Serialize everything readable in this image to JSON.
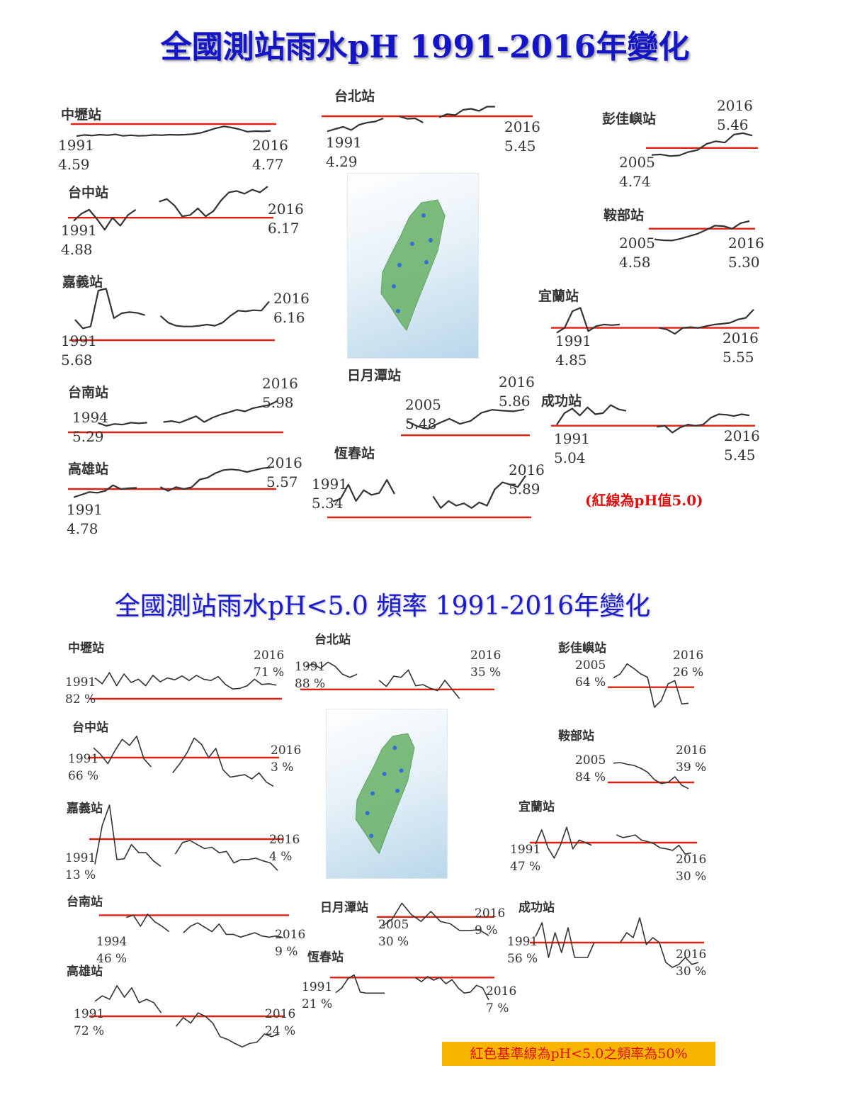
{
  "title_top": "全國測站雨水pH 1991-2016年變化",
  "title_bottom": "全國測站雨水pH<5.0 頻率 1991-2016年變化",
  "note_top": "(紅線為pH值5.0)",
  "note_bottom": "紅色基準線為pH<5.0之頻率為50%",
  "colors": {
    "title": "#1515c8",
    "reference_line": "#e02010",
    "series": "#333333",
    "note_bg": "#f7b500"
  },
  "chart_data": [
    {
      "type": "line",
      "title": "全國測站雨水pH 1991-2016年變化",
      "reference_line": 5.0,
      "stations": [
        {
          "name": "中壢站",
          "start_year": "1991",
          "start_value": "4.59",
          "end_year": "2016",
          "end_value": "4.77",
          "values": [
            4.59,
            4.63,
            4.61,
            4.64,
            4.62,
            4.65,
            4.6,
            4.62,
            4.6,
            4.61,
            4.63,
            4.62,
            4.64,
            4.63,
            4.64,
            4.66,
            4.7,
            4.78,
            4.86,
            4.92,
            4.88,
            4.82,
            4.74,
            4.76,
            4.75,
            4.77
          ]
        },
        {
          "name": "台中站",
          "start_year": "1991",
          "start_value": "4.88",
          "end_year": "2016",
          "end_value": "6.17",
          "values": [
            4.88,
            5.15,
            5.3,
            4.95,
            4.55,
            5.0,
            4.7,
            5.1,
            5.3,
            null,
            null,
            5.6,
            5.7,
            5.45,
            5.05,
            5.1,
            5.35,
            5.05,
            5.25,
            5.65,
            5.95,
            6.0,
            5.9,
            6.05,
            5.95,
            6.17
          ]
        },
        {
          "name": "嘉義站",
          "start_year": "1991",
          "start_value": "5.68",
          "end_year": "2016",
          "end_value": "6.16",
          "values": [
            5.68,
            5.45,
            5.5,
            6.45,
            6.5,
            5.72,
            5.85,
            5.88,
            5.86,
            5.8,
            null,
            5.78,
            5.6,
            5.52,
            5.5,
            5.5,
            5.52,
            5.55,
            5.52,
            5.6,
            5.78,
            5.92,
            5.9,
            5.93,
            5.92,
            6.16
          ]
        },
        {
          "name": "台南站",
          "start_year": "1994",
          "start_value": "5.29",
          "end_year": "2016",
          "end_value": "5.98",
          "values": [
            null,
            null,
            null,
            5.29,
            5.2,
            5.26,
            5.24,
            5.3,
            5.28,
            5.3,
            null,
            5.32,
            5.35,
            5.3,
            5.4,
            5.5,
            5.32,
            5.45,
            5.55,
            5.62,
            5.7,
            5.65,
            5.75,
            5.8,
            5.85,
            5.98
          ]
        },
        {
          "name": "高雄站",
          "start_year": "1991",
          "start_value": "4.78",
          "end_year": "2016",
          "end_value": "5.57",
          "values": [
            4.78,
            4.85,
            4.92,
            4.9,
            4.95,
            5.1,
            5.0,
            5.02,
            5.03,
            null,
            null,
            5.05,
            4.95,
            5.05,
            5.0,
            5.05,
            5.25,
            5.3,
            5.42,
            5.5,
            5.52,
            5.5,
            5.45,
            5.5,
            5.55,
            5.57
          ]
        },
        {
          "name": "台北站",
          "start_year": "1991",
          "start_value": "4.29",
          "end_year": "2016",
          "end_value": "5.45",
          "values": [
            4.29,
            4.4,
            4.5,
            4.35,
            4.6,
            4.7,
            4.75,
            4.9,
            null,
            5.0,
            4.88,
            4.9,
            4.7,
            null,
            4.95,
            5.1,
            5.05,
            5.3,
            5.35,
            5.25,
            5.45,
            5.45,
            null,
            null,
            null,
            5.45
          ]
        },
        {
          "name": "日月潭站",
          "start_year": "2005",
          "start_value": "5.48",
          "end_year": "2016",
          "end_value": "5.86",
          "values": [
            5.48,
            5.3,
            5.22,
            5.4,
            5.55,
            5.38,
            5.48,
            5.75,
            5.85,
            5.82,
            5.8,
            5.86
          ]
        },
        {
          "name": "恆春站",
          "start_year": "1991",
          "start_value": "5.34",
          "end_year": "2016",
          "end_value": "5.89",
          "values": [
            5.34,
            5.4,
            5.7,
            5.35,
            5.58,
            5.48,
            5.52,
            5.8,
            5.5,
            null,
            null,
            null,
            null,
            5.45,
            5.2,
            5.35,
            5.25,
            5.3,
            5.2,
            5.32,
            5.25,
            5.6,
            5.75,
            5.7,
            5.65,
            5.89
          ]
        },
        {
          "name": "彭佳嶼站",
          "start_year": "2005",
          "start_value": "4.74",
          "end_year": "2016",
          "end_value": "5.46",
          "values": [
            4.74,
            4.76,
            4.7,
            4.72,
            4.85,
            4.92,
            5.15,
            5.25,
            5.2,
            5.5,
            5.55,
            5.46
          ]
        },
        {
          "name": "鞍部站",
          "start_year": "2005",
          "start_value": "4.58",
          "end_year": "2016",
          "end_value": "5.30",
          "values": [
            4.58,
            4.54,
            4.53,
            4.6,
            4.7,
            4.8,
            4.95,
            5.12,
            5.1,
            5.0,
            5.22,
            5.3
          ]
        },
        {
          "name": "宜蘭站",
          "start_year": "1991",
          "start_value": "4.85",
          "end_year": "2016",
          "end_value": "5.55",
          "values": [
            4.85,
            5.0,
            5.5,
            5.6,
            4.9,
            5.05,
            5.1,
            5.08,
            5.1,
            null,
            null,
            null,
            null,
            5.0,
            4.95,
            4.82,
            5.0,
            5.02,
            5.0,
            5.05,
            5.1,
            5.12,
            5.15,
            5.25,
            5.3,
            5.55
          ]
        },
        {
          "name": "成功站",
          "start_year": "1991",
          "start_value": "5.04",
          "end_year": "2016",
          "end_value": "5.45",
          "values": [
            5.04,
            5.55,
            5.75,
            5.45,
            5.8,
            5.5,
            5.55,
            5.9,
            5.72,
            5.65,
            null,
            null,
            null,
            4.95,
            5.0,
            4.7,
            4.92,
            5.05,
            5.0,
            5.05,
            5.35,
            5.5,
            5.48,
            5.42,
            5.5,
            5.45
          ]
        }
      ]
    },
    {
      "type": "line",
      "title": "全國測站雨水pH<5.0 頻率 1991-2016年變化",
      "reference_line": "50%",
      "stations": [
        {
          "name": "中壢站",
          "start_year": "1991",
          "start_value": "82 %",
          "end_year": "2016",
          "end_value": "71 %",
          "values": [
            82,
            73,
            90,
            70,
            88,
            75,
            80,
            70,
            86,
            76,
            82,
            79,
            85,
            78,
            86,
            80,
            78,
            84,
            72,
            65,
            66,
            70,
            80,
            72,
            73,
            71
          ]
        },
        {
          "name": "台中站",
          "start_year": "1991",
          "start_value": "66 %",
          "end_year": "2016",
          "end_value": "3 %",
          "values": [
            66,
            55,
            40,
            62,
            80,
            70,
            85,
            48,
            35,
            null,
            null,
            25,
            40,
            58,
            82,
            72,
            50,
            65,
            30,
            18,
            20,
            22,
            15,
            25,
            10,
            3
          ]
        },
        {
          "name": "嘉義站",
          "start_year": "1991",
          "start_value": "13 %",
          "end_year": "2016",
          "end_value": "4 %",
          "values": [
            13,
            70,
            100,
            20,
            21,
            42,
            30,
            30,
            18,
            10,
            null,
            28,
            45,
            48,
            42,
            36,
            38,
            30,
            32,
            15,
            20,
            20,
            22,
            18,
            15,
            4
          ]
        },
        {
          "name": "台南站",
          "start_year": "1994",
          "start_value": "46 %",
          "end_year": "2016",
          "end_value": "9 %",
          "values": [
            null,
            null,
            null,
            46,
            50,
            30,
            52,
            38,
            30,
            20,
            null,
            18,
            30,
            36,
            28,
            20,
            34,
            15,
            15,
            10,
            14,
            18,
            12,
            10,
            12,
            9
          ]
        },
        {
          "name": "高雄站",
          "start_year": "1991",
          "start_value": "72 %",
          "end_year": "2016",
          "end_value": "24 %",
          "values": [
            72,
            80,
            75,
            95,
            78,
            92,
            70,
            75,
            70,
            55,
            null,
            35,
            48,
            40,
            55,
            50,
            40,
            20,
            16,
            10,
            5,
            10,
            12,
            24,
            20,
            24
          ]
        },
        {
          "name": "台北站",
          "start_year": "1991",
          "start_value": "88 %",
          "end_year": "2016",
          "end_value": "35 %",
          "values": [
            88,
            92,
            85,
            95,
            88,
            75,
            70,
            75,
            null,
            null,
            65,
            55,
            72,
            70,
            82,
            56,
            58,
            52,
            48,
            65,
            50,
            35,
            null,
            null,
            null,
            35
          ]
        },
        {
          "name": "日月潭站",
          "start_year": "2005",
          "start_value": "30 %",
          "end_year": "2016",
          "end_value": "9 %",
          "values": [
            30,
            45,
            80,
            55,
            40,
            62,
            40,
            35,
            20,
            20,
            22,
            9
          ]
        },
        {
          "name": "恆春站",
          "start_year": "1991",
          "start_value": "21 %",
          "end_year": "2016",
          "end_value": "7 %",
          "values": [
            21,
            30,
            48,
            55,
            22,
            20,
            20,
            20,
            20,
            null,
            null,
            null,
            null,
            50,
            42,
            52,
            45,
            50,
            38,
            46,
            30,
            20,
            22,
            35,
            30,
            7
          ]
        },
        {
          "name": "彭佳嶼站",
          "start_year": "2005",
          "start_value": "64 %",
          "end_year": "2016",
          "end_value": "26 %",
          "values": [
            64,
            70,
            85,
            78,
            70,
            65,
            20,
            30,
            55,
            60,
            25,
            26
          ]
        },
        {
          "name": "鞍部站",
          "start_year": "2005",
          "start_value": "84 %",
          "end_year": "2016",
          "end_value": "39 %",
          "values": [
            84,
            85,
            82,
            80,
            75,
            68,
            55,
            48,
            50,
            60,
            45,
            39
          ]
        },
        {
          "name": "宜蘭站",
          "start_year": "1991",
          "start_value": "47 %",
          "end_year": "2016",
          "end_value": "30 %",
          "values": [
            47,
            75,
            40,
            20,
            45,
            80,
            38,
            55,
            50,
            45,
            null,
            null,
            null,
            65,
            60,
            62,
            65,
            55,
            52,
            48,
            40,
            38,
            35,
            45,
            28,
            30
          ]
        },
        {
          "name": "成功站",
          "start_year": "1991",
          "start_value": "56 %",
          "end_year": "2016",
          "end_value": "30 %",
          "values": [
            56,
            70,
            35,
            60,
            40,
            65,
            35,
            35,
            35,
            50,
            null,
            null,
            null,
            50,
            60,
            55,
            75,
            48,
            55,
            50,
            30,
            25,
            28,
            35,
            28,
            30
          ]
        }
      ]
    }
  ]
}
